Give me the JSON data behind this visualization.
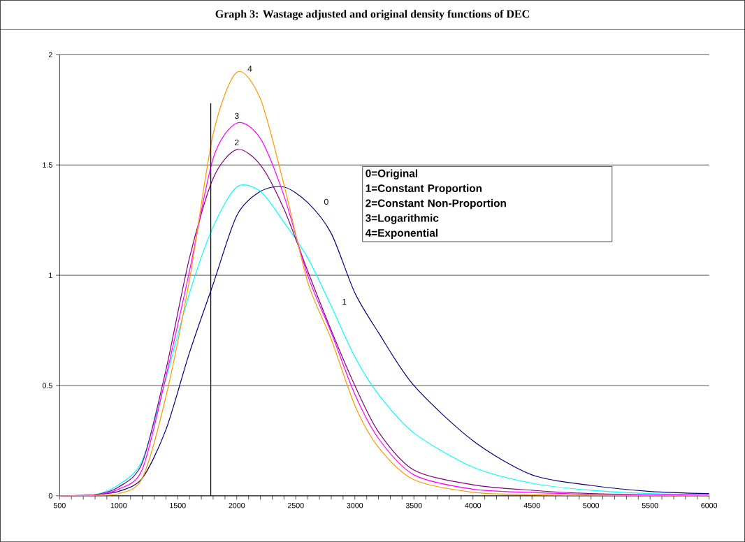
{
  "chart_data": {
    "type": "line",
    "title": "Graph 3: Wastage adjusted and original density functions of DEC",
    "x": [
      500,
      800,
      1000,
      1200,
      1400,
      1600,
      1800,
      2000,
      2200,
      2400,
      2600,
      2800,
      3000,
      3200,
      3500,
      4000,
      4500,
      5000,
      5500,
      6000
    ],
    "series": [
      {
        "name": "0",
        "color": "#000080",
        "values": [
          0,
          0.005,
          0.02,
          0.08,
          0.3,
          0.65,
          0.96,
          1.27,
          1.38,
          1.4,
          1.33,
          1.19,
          0.92,
          0.74,
          0.5,
          0.25,
          0.095,
          0.047,
          0.02,
          0.01
        ]
      },
      {
        "name": "1",
        "color": "#00ffff",
        "values": [
          0,
          0.005,
          0.05,
          0.16,
          0.53,
          0.92,
          1.22,
          1.4,
          1.38,
          1.24,
          1.08,
          0.86,
          0.63,
          0.46,
          0.285,
          0.13,
          0.057,
          0.025,
          0.01,
          0.005
        ]
      },
      {
        "name": "2",
        "color": "#800080",
        "values": [
          0,
          0.005,
          0.04,
          0.15,
          0.57,
          1.08,
          1.44,
          1.57,
          1.5,
          1.3,
          1.02,
          0.75,
          0.5,
          0.29,
          0.117,
          0.05,
          0.025,
          0.01,
          0.004,
          0.002
        ]
      },
      {
        "name": "3",
        "color": "#ff00ff",
        "values": [
          0,
          0.004,
          0.03,
          0.12,
          0.54,
          1.02,
          1.53,
          1.69,
          1.62,
          1.36,
          1.0,
          0.74,
          0.46,
          0.26,
          0.095,
          0.03,
          0.015,
          0.007,
          0.004,
          0.002
        ]
      },
      {
        "name": "4",
        "color": "#ff9900",
        "values": [
          0,
          0.002,
          0.01,
          0.08,
          0.45,
          0.98,
          1.64,
          1.92,
          1.8,
          1.41,
          0.97,
          0.71,
          0.41,
          0.22,
          0.073,
          0.016,
          0.005,
          0.002,
          0.001,
          0.001
        ]
      },
      {
        "color": "#000000",
        "x": [
          1780,
          1780
        ],
        "values": [
          0,
          1.78
        ]
      }
    ],
    "xlim": [
      500,
      6000
    ],
    "xticks": [
      500,
      1000,
      1500,
      2000,
      2500,
      3000,
      3500,
      4000,
      4500,
      5000,
      5500,
      6000
    ],
    "ylim": [
      0,
      2
    ],
    "yticks": [
      0,
      0.5,
      1,
      1.5,
      2
    ],
    "grid": "y",
    "annotations": [
      "0=Original",
      "1=Constant Proportion",
      "2=Constant Non-Proportion",
      "3=Logarithmic",
      "4=Exponential"
    ]
  }
}
